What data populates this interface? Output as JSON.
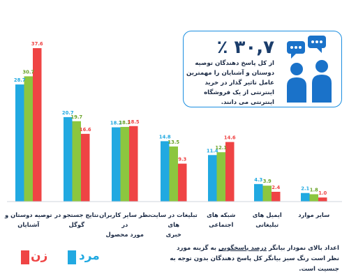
{
  "chart_data": {
    "type": "bar",
    "categories": [
      "توصیه دوستان و آشنایان",
      "نتایج جستجو در گوگل",
      "نظر سایر کاربران در مورد محصول",
      "تبلیغات در سایت های خبری",
      "شبکه های اجتماعی",
      "ایمیل های تبلیغاتی",
      "سایر موارد"
    ],
    "series": [
      {
        "name": "مرد",
        "color": "#21a9e1",
        "values": [
          28.7,
          20.7,
          18.2,
          14.8,
          11.4,
          4.3,
          2.1
        ]
      },
      {
        "name": "",
        "color": "#8cc63f",
        "values": [
          30.7,
          19.7,
          18.3,
          13.5,
          12.1,
          3.9,
          1.8
        ]
      },
      {
        "name": "زن",
        "color": "#ef4444",
        "values": [
          37.6,
          16.6,
          18.5,
          9.3,
          14.6,
          2.4,
          1.0
        ]
      }
    ],
    "value_labels": [
      [
        "28.7",
        "30.7",
        "37.6"
      ],
      [
        "20.7",
        "19.7",
        "16.6"
      ],
      [
        "18.2",
        "18.3",
        "18.5"
      ],
      [
        "14.8",
        "13.5",
        "9.3"
      ],
      [
        "11.4",
        "12.1",
        "14.6"
      ],
      [
        "4.3",
        "3.9",
        "2.4"
      ],
      [
        "2.1",
        "1.8",
        "1.0"
      ]
    ],
    "ylim": [
      0,
      40
    ],
    "grid": false,
    "legend": "bottom-left"
  },
  "callout": {
    "percent": "۳۰,۷ ٪",
    "text": "از کل پاسخ دهندگان توصیه دوستان و آشنایان را مهمترین عامل تاثیر گذار در خرید اینترنتی از یک فروشگاه اینترنتی می دانند.",
    "icon": "people-chat-icon",
    "border_color": "#1a8ee0"
  },
  "xlabels": [
    [
      "توصیه دوستان و",
      "آشنایان"
    ],
    [
      "نتایج جستجو در گوگل",
      ""
    ],
    [
      "نظر سایر کاربران در",
      "مورد محصول"
    ],
    [
      "تبلیغات در سایت های",
      "خبری"
    ],
    [
      "شبکه های اجتماعی",
      ""
    ],
    [
      "ایمیل های تبلیغاتی",
      ""
    ],
    [
      "سایر موارد",
      ""
    ]
  ],
  "note": {
    "pre": "اعداد بالای نمودار بیانگر ",
    "key": "درصد پاسخگویی",
    "post": " به گزینه مورد نظر است رنگ سبز بیانگر کل پاسخ دهندگان بدون توجه به جنسیت است."
  },
  "legend": {
    "female_label": "زن",
    "male_label": "مرد",
    "female_color": "#ef4444",
    "male_color": "#21a9e1"
  }
}
